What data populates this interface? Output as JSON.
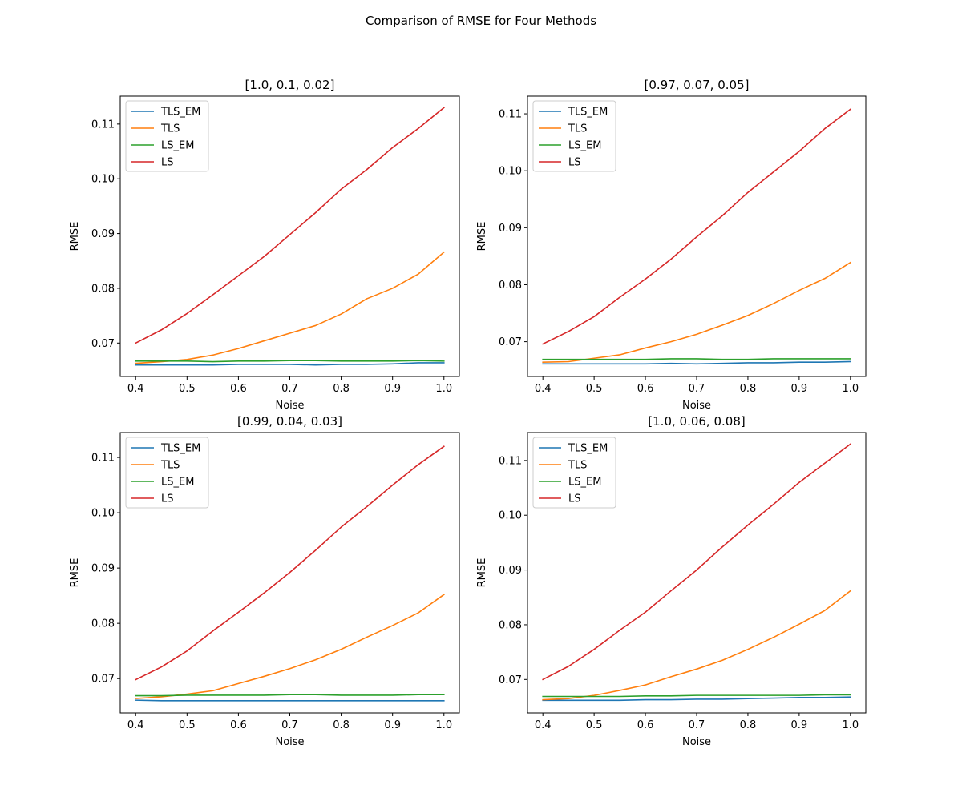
{
  "figure": {
    "suptitle": "Comparison of RMSE for Four Methods"
  },
  "chart_data": [
    {
      "type": "line",
      "title": "[1.0, 0.1, 0.02]",
      "xlabel": "Noise",
      "ylabel": "RMSE",
      "xlim": [
        0.37,
        1.03
      ],
      "ylim": [
        0.0639,
        0.1151
      ],
      "xticks": [
        "0.4",
        "0.5",
        "0.6",
        "0.7",
        "0.8",
        "0.9",
        "1.0"
      ],
      "yticks": [
        "0.07",
        "0.08",
        "0.09",
        "0.10",
        "0.11"
      ],
      "legend_position": "upper-left",
      "grid": false,
      "x": [
        0.4,
        0.45,
        0.5,
        0.55,
        0.6,
        0.65,
        0.7,
        0.75,
        0.8,
        0.85,
        0.9,
        0.95,
        1.0
      ],
      "series": [
        {
          "name": "TLS_EM",
          "color": "#1f77b4",
          "values": [
            0.066,
            0.066,
            0.066,
            0.066,
            0.0661,
            0.0661,
            0.0661,
            0.066,
            0.0661,
            0.0661,
            0.0662,
            0.0664,
            0.0664
          ]
        },
        {
          "name": "TLS",
          "color": "#ff7f0e",
          "values": [
            0.0663,
            0.0666,
            0.067,
            0.0678,
            0.069,
            0.0704,
            0.0718,
            0.0732,
            0.0753,
            0.0781,
            0.08,
            0.0826,
            0.0866
          ]
        },
        {
          "name": "LS_EM",
          "color": "#2ca02c",
          "values": [
            0.0667,
            0.0667,
            0.0667,
            0.0666,
            0.0667,
            0.0667,
            0.0668,
            0.0668,
            0.0667,
            0.0667,
            0.0667,
            0.0668,
            0.0667
          ]
        },
        {
          "name": "LS",
          "color": "#d62728",
          "values": [
            0.07,
            0.0724,
            0.0754,
            0.0788,
            0.0823,
            0.0858,
            0.0898,
            0.0938,
            0.0981,
            0.1017,
            0.1057,
            0.1092,
            0.113
          ]
        }
      ]
    },
    {
      "type": "line",
      "title": "[0.97, 0.07, 0.05]",
      "xlabel": "Noise",
      "ylabel": "RMSE",
      "xlim": [
        0.37,
        1.03
      ],
      "ylim": [
        0.0639,
        0.1131
      ],
      "xticks": [
        "0.4",
        "0.5",
        "0.6",
        "0.7",
        "0.8",
        "0.9",
        "1.0"
      ],
      "yticks": [
        "0.07",
        "0.08",
        "0.09",
        "0.10",
        "0.11"
      ],
      "legend_position": "upper-left",
      "grid": false,
      "x": [
        0.4,
        0.45,
        0.5,
        0.55,
        0.6,
        0.65,
        0.7,
        0.75,
        0.8,
        0.85,
        0.9,
        0.95,
        1.0
      ],
      "series": [
        {
          "name": "TLS_EM",
          "color": "#1f77b4",
          "values": [
            0.0661,
            0.0661,
            0.0661,
            0.0661,
            0.0661,
            0.0662,
            0.0661,
            0.0662,
            0.0663,
            0.0663,
            0.0664,
            0.0664,
            0.0665
          ]
        },
        {
          "name": "TLS",
          "color": "#ff7f0e",
          "values": [
            0.0664,
            0.0665,
            0.0671,
            0.0677,
            0.0689,
            0.07,
            0.0713,
            0.0729,
            0.0746,
            0.0767,
            0.079,
            0.0811,
            0.0839
          ]
        },
        {
          "name": "LS_EM",
          "color": "#2ca02c",
          "values": [
            0.0669,
            0.0669,
            0.0669,
            0.0669,
            0.0669,
            0.067,
            0.067,
            0.0669,
            0.0669,
            0.067,
            0.067,
            0.067,
            0.067
          ]
        },
        {
          "name": "LS",
          "color": "#d62728",
          "values": [
            0.0696,
            0.0718,
            0.0744,
            0.0778,
            0.081,
            0.0845,
            0.0884,
            0.0921,
            0.0962,
            0.0998,
            0.1034,
            0.1074,
            0.1108
          ]
        }
      ]
    },
    {
      "type": "line",
      "title": "[0.99, 0.04, 0.03]",
      "xlabel": "Noise",
      "ylabel": "RMSE",
      "xlim": [
        0.37,
        1.03
      ],
      "ylim": [
        0.0638,
        0.1145
      ],
      "xticks": [
        "0.4",
        "0.5",
        "0.6",
        "0.7",
        "0.8",
        "0.9",
        "1.0"
      ],
      "yticks": [
        "0.07",
        "0.08",
        "0.09",
        "0.10",
        "0.11"
      ],
      "legend_position": "upper-left",
      "grid": false,
      "x": [
        0.4,
        0.45,
        0.5,
        0.55,
        0.6,
        0.65,
        0.7,
        0.75,
        0.8,
        0.85,
        0.9,
        0.95,
        1.0
      ],
      "series": [
        {
          "name": "TLS_EM",
          "color": "#1f77b4",
          "values": [
            0.0661,
            0.066,
            0.066,
            0.066,
            0.066,
            0.066,
            0.066,
            0.066,
            0.066,
            0.066,
            0.066,
            0.066,
            0.066
          ]
        },
        {
          "name": "TLS",
          "color": "#ff7f0e",
          "values": [
            0.0664,
            0.0667,
            0.0672,
            0.0678,
            0.0691,
            0.0704,
            0.0718,
            0.0734,
            0.0753,
            0.0775,
            0.0796,
            0.0819,
            0.0852
          ]
        },
        {
          "name": "LS_EM",
          "color": "#2ca02c",
          "values": [
            0.0669,
            0.0669,
            0.067,
            0.067,
            0.067,
            0.067,
            0.0671,
            0.0671,
            0.067,
            0.067,
            0.067,
            0.0671,
            0.0671
          ]
        },
        {
          "name": "LS",
          "color": "#d62728",
          "values": [
            0.0698,
            0.0721,
            0.075,
            0.0786,
            0.082,
            0.0855,
            0.0892,
            0.0932,
            0.0974,
            0.1011,
            0.105,
            0.1087,
            0.112
          ]
        }
      ]
    },
    {
      "type": "line",
      "title": "[1.0, 0.06, 0.08]",
      "xlabel": "Noise",
      "ylabel": "RMSE",
      "xlim": [
        0.37,
        1.03
      ],
      "ylim": [
        0.0639,
        0.1151
      ],
      "xticks": [
        "0.4",
        "0.5",
        "0.6",
        "0.7",
        "0.8",
        "0.9",
        "1.0"
      ],
      "yticks": [
        "0.07",
        "0.08",
        "0.09",
        "0.10",
        "0.11"
      ],
      "legend_position": "upper-left",
      "grid": false,
      "x": [
        0.4,
        0.45,
        0.5,
        0.55,
        0.6,
        0.65,
        0.7,
        0.75,
        0.8,
        0.85,
        0.9,
        0.95,
        1.0
      ],
      "series": [
        {
          "name": "TLS_EM",
          "color": "#1f77b4",
          "values": [
            0.0662,
            0.0662,
            0.0662,
            0.0662,
            0.0663,
            0.0663,
            0.0664,
            0.0664,
            0.0665,
            0.0666,
            0.0667,
            0.0667,
            0.0668
          ]
        },
        {
          "name": "TLS",
          "color": "#ff7f0e",
          "values": [
            0.0663,
            0.0665,
            0.0671,
            0.068,
            0.069,
            0.0705,
            0.0719,
            0.0735,
            0.0755,
            0.0777,
            0.0801,
            0.0826,
            0.0862
          ]
        },
        {
          "name": "LS_EM",
          "color": "#2ca02c",
          "values": [
            0.0669,
            0.0669,
            0.0669,
            0.0669,
            0.067,
            0.067,
            0.0671,
            0.0671,
            0.0671,
            0.0671,
            0.0671,
            0.0672,
            0.0672
          ]
        },
        {
          "name": "LS",
          "color": "#d62728",
          "values": [
            0.07,
            0.0724,
            0.0755,
            0.079,
            0.0823,
            0.0862,
            0.09,
            0.0942,
            0.0982,
            0.102,
            0.106,
            0.1095,
            0.113
          ]
        }
      ]
    }
  ]
}
